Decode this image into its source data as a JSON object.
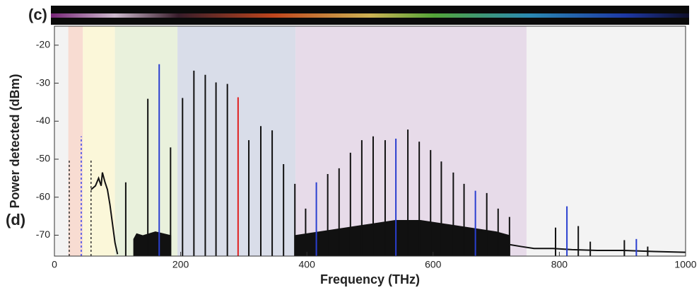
{
  "panel_labels": {
    "top": "(c)",
    "bottom": "(d)"
  },
  "chart_data": {
    "type": "spectrum",
    "xlabel": "Frequency (THz)",
    "ylabel": "Power detected (dBm)",
    "xlim": [
      0,
      1000
    ],
    "ylim": [
      -75.5,
      -15
    ],
    "xticks": [
      0,
      200,
      400,
      600,
      800,
      1000
    ],
    "yticks": [
      -20,
      -30,
      -40,
      -50,
      -60,
      -70
    ],
    "background": "#f3f3f3",
    "bands": [
      {
        "x": [
          22,
          45
        ],
        "color": "#f8dcd2"
      },
      {
        "x": [
          45,
          96
        ],
        "color": "#fbf7d9"
      },
      {
        "x": [
          96,
          195
        ],
        "color": "#e9f1dc"
      },
      {
        "x": [
          195,
          382
        ],
        "color": "#d9dde9"
      },
      {
        "x": [
          382,
          748
        ],
        "color": "#e7dbe9"
      }
    ],
    "series": [
      {
        "style": "area",
        "color": "#111111",
        "x": [
          125,
          130,
          140,
          160,
          185
        ],
        "values": [
          -71,
          -69.5,
          -70,
          -69,
          -70
        ]
      },
      {
        "style": "area",
        "color": "#111111",
        "x": [
          380,
          420,
          460,
          500,
          540,
          580,
          620,
          660,
          700,
          722
        ],
        "values": [
          -70,
          -69,
          -68,
          -67,
          -66,
          -66,
          -67,
          -68,
          -69,
          -70
        ]
      },
      {
        "style": "line",
        "color": "#111111",
        "x": [
          58,
          65,
          70,
          74,
          76,
          80,
          84,
          88,
          92,
          96,
          100
        ],
        "values": [
          -58,
          -57,
          -55,
          -57,
          -53.5,
          -56,
          -58,
          -62,
          -67,
          -72,
          -75
        ]
      },
      {
        "style": "line",
        "color": "#111111",
        "x": [
          722,
          740,
          760,
          790,
          820,
          860,
          900,
          950,
          1000
        ],
        "values": [
          -72.5,
          -73,
          -73.5,
          -73.5,
          -73.8,
          -74,
          -74,
          -74.3,
          -74.5
        ]
      },
      {
        "style": "stem",
        "color": "#111111",
        "x": [
          113,
          148,
          184,
          203,
          221,
          239,
          256,
          274,
          308,
          327,
          345,
          363,
          381,
          398,
          433,
          451,
          469,
          487,
          505,
          524,
          560,
          578,
          596,
          613,
          632,
          649,
          685,
          703,
          721,
          794,
          830,
          849,
          903,
          940
        ],
        "values": [
          -56.1,
          -34.1,
          -46.9,
          -33.9,
          -26.7,
          -27.8,
          -29.8,
          -30.2,
          -45,
          -41.3,
          -42.4,
          -51.3,
          -56.5,
          -63,
          -53.9,
          -52.4,
          -48.3,
          -45,
          -44,
          -45,
          -42.2,
          -45.4,
          -47.6,
          -50.6,
          -53.5,
          -56.5,
          -58.9,
          -63,
          -65.2,
          -68,
          -67.6,
          -71.7,
          -71.3,
          -73
        ]
      },
      {
        "style": "stem",
        "color": "#2a3fd0",
        "x": [
          166,
          415,
          541,
          667,
          812,
          922
        ],
        "values": [
          -25,
          -56.1,
          -44.6,
          -58.3,
          -62.4,
          -71
        ]
      },
      {
        "style": "stem",
        "color": "#e02020",
        "x": [
          291
        ],
        "values": [
          -33.7
        ]
      },
      {
        "style": "dashed-stem",
        "color": "#333333",
        "x": [
          23.5,
          58
        ],
        "values": [
          -50.4,
          -50
        ]
      },
      {
        "style": "dashed-stem",
        "color": "#3344ee",
        "x": [
          42.5
        ],
        "values": [
          -44
        ]
      }
    ]
  }
}
